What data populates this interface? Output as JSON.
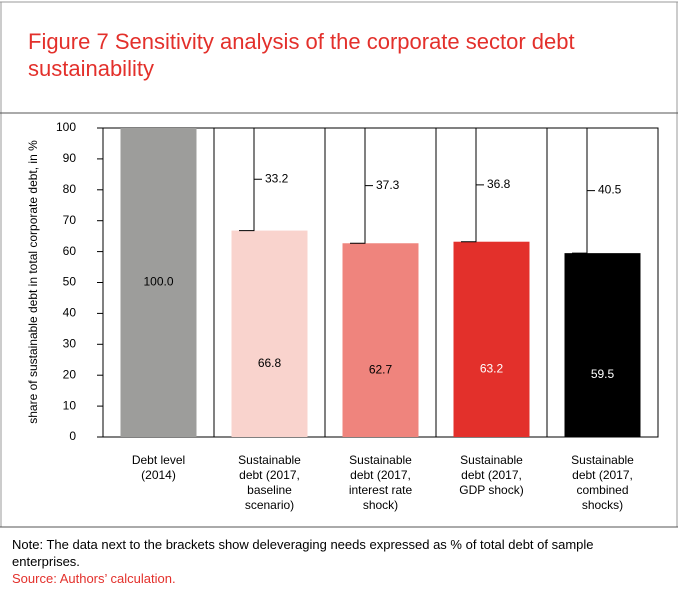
{
  "chart_data": {
    "type": "bar",
    "title": "Figure 7 Sensitivity analysis of the corporate sector debt sustainability",
    "y_label": "share of sustainable debt in total corporate debt, in %",
    "categories": [
      [
        "Debt level",
        "(2014)"
      ],
      [
        "Sustainable",
        "debt (2017,",
        "baseline",
        "scenario)"
      ],
      [
        "Sustainable",
        "debt (2017,",
        "interest rate",
        "shock)"
      ],
      [
        "Sustainable",
        "debt (2017,",
        "GDP shock)"
      ],
      [
        "Sustainable",
        "debt (2017,",
        "combined",
        "shocks)"
      ]
    ],
    "values": [
      100,
      66.8,
      62.7,
      63.2,
      59.5
    ],
    "value_labels": [
      "100.0",
      "66.8",
      "62.7",
      "63.2",
      "59.5"
    ],
    "colors": [
      "#9d9d9b",
      "#f9d3cd",
      "#ef847d",
      "#e3302b",
      "#000000"
    ],
    "label_colors": [
      "#000000",
      "#000000",
      "#000000",
      "#ffffff",
      "#ffffff"
    ],
    "bracket_values": [
      null,
      33.2,
      37.3,
      36.8,
      40.5
    ],
    "ylim": [
      0,
      100
    ],
    "yticks": [
      0,
      10,
      20,
      30,
      40,
      50,
      60,
      70,
      80,
      90,
      100
    ],
    "note": "Note: The data next to the brackets show deleveraging needs expressed as % of total debt of sample enterprises.",
    "source": "Source: Authors’ calculation."
  }
}
